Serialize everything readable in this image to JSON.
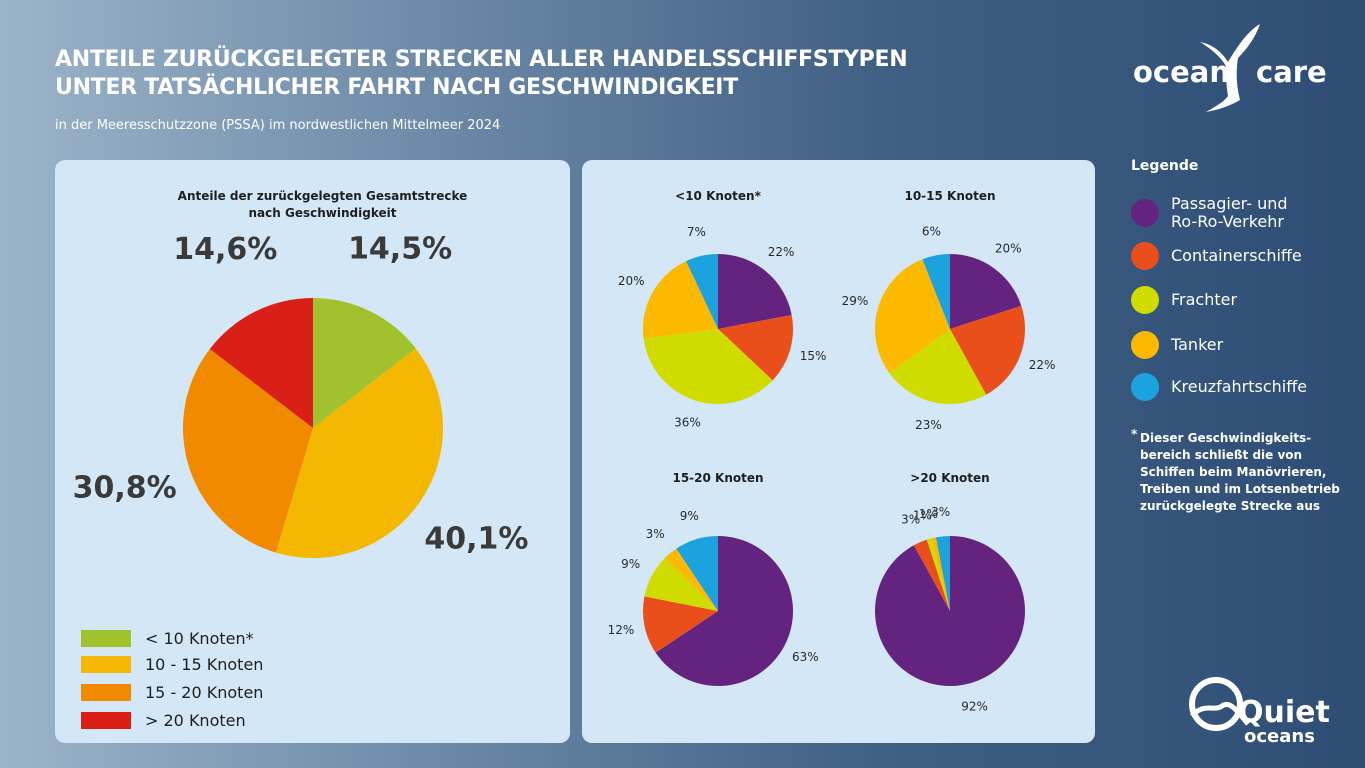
{
  "header": {
    "title_line1": "ANTEILE ZURÜCKGELEGTER STRECKEN ALLER HANDELSSCHIFFSTYPEN",
    "title_line2": "UNTER TATSÄCHLICHER FAHRT NACH GESCHWINDIGKEIT",
    "subtitle": "in der Meeresschutzzone (PSSA) im nordwestlichen Mittelmeer 2024"
  },
  "logos": {
    "oceancare_left": "ocean",
    "oceancare_right": "care",
    "quiet": "Quiet",
    "oceans": "oceans"
  },
  "colors": {
    "speed": [
      "#a1c12e",
      "#f4b800",
      "#f28a00",
      "#d91f16"
    ],
    "ship": [
      "#652380",
      "#e94e1b",
      "#d0dc00",
      "#fbb900",
      "#1ca3dd"
    ]
  },
  "chart_data": [
    {
      "type": "pie",
      "title_line1": "Anteile der zurückgelegten Gesamtstrecke",
      "title_line2": "nach Geschwindigkeit",
      "categories": [
        "< 10 Knoten*",
        "10 - 15 Knoten",
        "15 - 20 Knoten",
        "> 20 Knoten"
      ],
      "values": [
        14.5,
        40.1,
        30.8,
        14.6
      ],
      "labels": [
        "14,5%",
        "40,1%",
        "30,8%",
        "14,6%"
      ]
    },
    {
      "type": "pie",
      "title": "<10 Knoten*",
      "categories": [
        "Passagier- und Ro-Ro-Verkehr",
        "Containerschiffe",
        "Frachter",
        "Tanker",
        "Kreuzfahrtschiffe"
      ],
      "values": [
        22,
        15,
        36,
        20,
        7
      ],
      "labels": [
        "22%",
        "15%",
        "36%",
        "20%",
        "7%"
      ]
    },
    {
      "type": "pie",
      "title": "10-15 Knoten",
      "categories": [
        "Passagier- und Ro-Ro-Verkehr",
        "Containerschiffe",
        "Frachter",
        "Tanker",
        "Kreuzfahrtschiffe"
      ],
      "values": [
        20,
        22,
        23,
        29,
        6
      ],
      "labels": [
        "20%",
        "22%",
        "23%",
        "29%",
        "6%"
      ]
    },
    {
      "type": "pie",
      "title": "15-20 Knoten",
      "categories": [
        "Passagier- und Ro-Ro-Verkehr",
        "Containerschiffe",
        "Frachter",
        "Tanker",
        "Kreuzfahrtschiffe"
      ],
      "values": [
        63,
        12,
        9,
        3,
        9
      ],
      "labels": [
        "63%",
        "12%",
        "9%",
        "3%",
        "9%"
      ]
    },
    {
      "type": "pie",
      "title": ">20 Knoten",
      "categories": [
        "Passagier- und Ro-Ro-Verkehr",
        "Containerschiffe",
        "Frachter",
        "Tanker",
        "Kreuzfahrtschiffe"
      ],
      "values": [
        92,
        3,
        1,
        1,
        3
      ],
      "labels": [
        "92%",
        "3%",
        "1%",
        "1%",
        "3%"
      ]
    }
  ],
  "legend_left": [
    "< 10 Knoten*",
    "10 - 15 Knoten",
    "15 - 20 Knoten",
    "> 20 Knoten"
  ],
  "legend_right": {
    "title": "Legende",
    "items": [
      {
        "line1": "Passagier- und",
        "line2": "Ro-Ro-Verkehr"
      },
      {
        "line1": "Containerschiffe"
      },
      {
        "line1": "Frachter"
      },
      {
        "line1": "Tanker"
      },
      {
        "line1": "Kreuzfahrtschiffe"
      }
    ]
  },
  "footnote": {
    "star": "*",
    "text": "Dieser Geschwindigkeits-bereich schließt die von Schiffen beim Manövrieren, Treiben und im Lotsenbetrieb zurückgelegte Strecke aus"
  }
}
